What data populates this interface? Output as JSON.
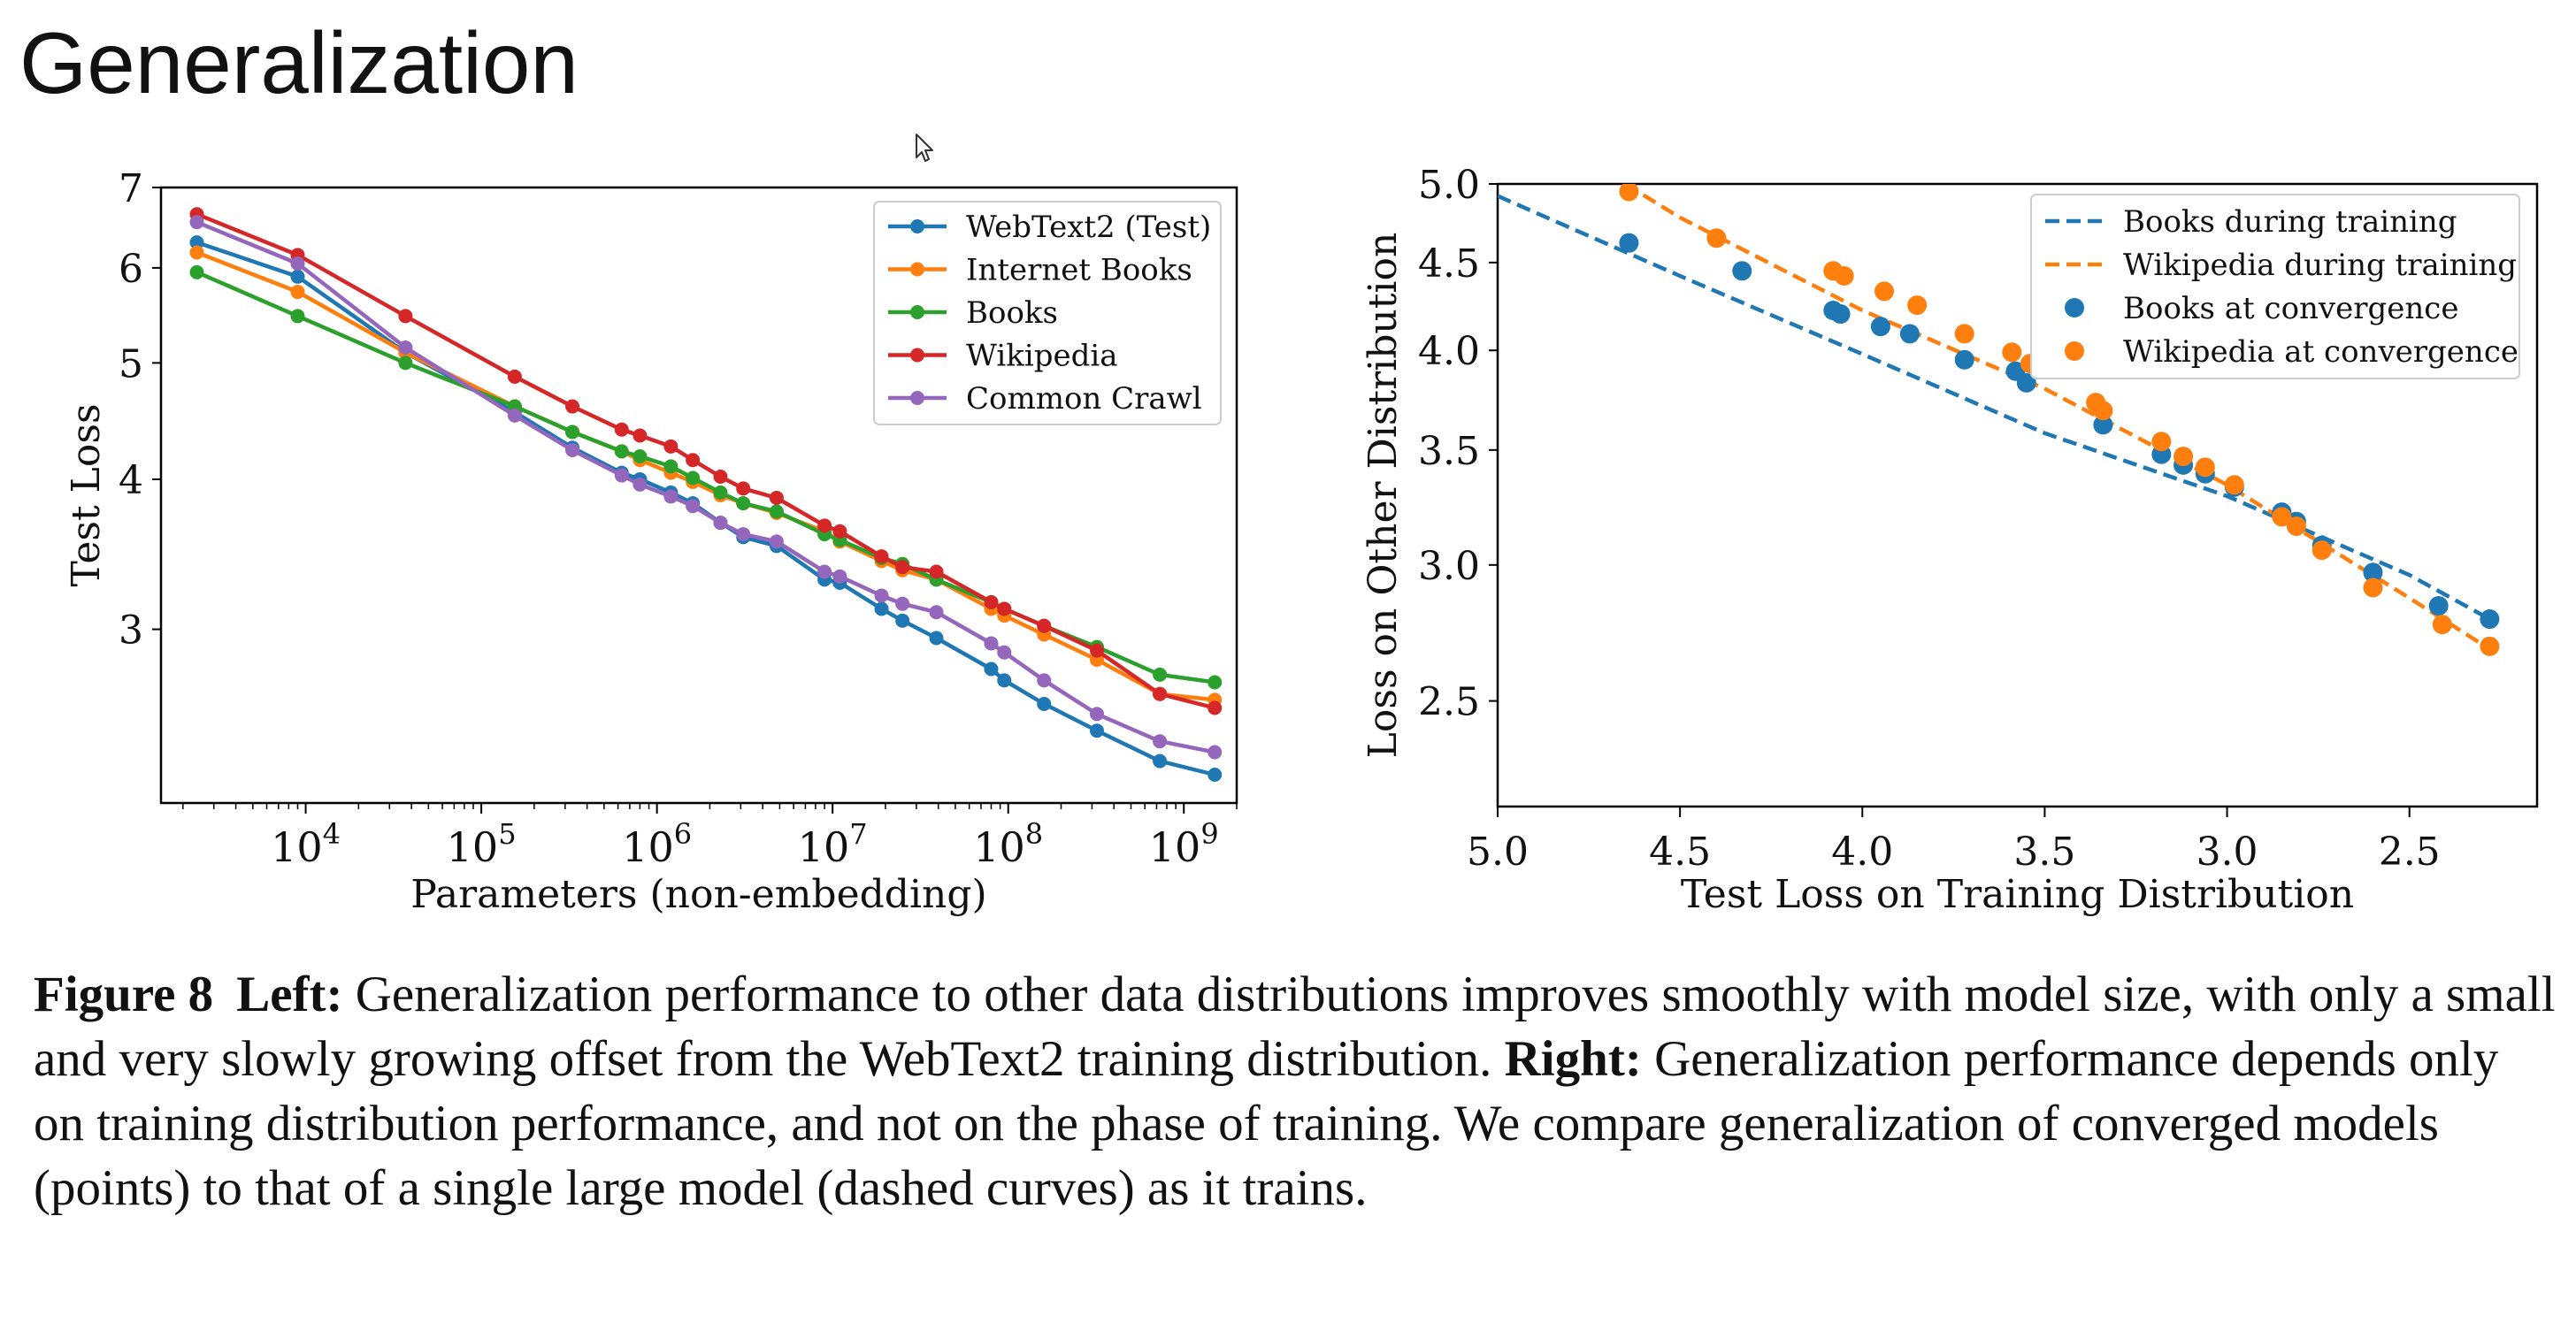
{
  "slide_title": "Generalization",
  "caption": {
    "figure_label": "Figure 8",
    "left_label": "Left:",
    "left_text": " Generalization performance to other data distributions improves smoothly with model size, with only a small and very slowly growing offset from the WebText2 training distribution. ",
    "right_label": "Right:",
    "right_text": " Generalization performance depends only on training distribution performance, and not on the phase of training. We compare generalization of converged models (points) to that of a single large model (dashed curves) as it trains."
  },
  "colors": {
    "blue": "#1f77b4",
    "orange": "#ff7f0e",
    "green": "#2ca02c",
    "red": "#d62728",
    "purple": "#9467bd"
  },
  "chart_data": [
    {
      "type": "line",
      "xlabel": "Parameters (non-embedding)",
      "ylabel": "Test Loss",
      "xscale": "log",
      "yscale": "log",
      "xlim": [
        1500,
        2000000000
      ],
      "ylim": [
        2.15,
        7.0
      ],
      "x_ticks": [
        {
          "value": 10000,
          "base": "10",
          "exp": "4"
        },
        {
          "value": 100000,
          "base": "10",
          "exp": "5"
        },
        {
          "value": 1000000,
          "base": "10",
          "exp": "6"
        },
        {
          "value": 10000000,
          "base": "10",
          "exp": "7"
        },
        {
          "value": 100000000,
          "base": "10",
          "exp": "8"
        },
        {
          "value": 1000000000,
          "base": "10",
          "exp": "9"
        }
      ],
      "y_ticks": [
        {
          "value": 3,
          "label": "3"
        },
        {
          "value": 4,
          "label": "4"
        },
        {
          "value": 5,
          "label": "5"
        },
        {
          "value": 6,
          "label": "6"
        },
        {
          "value": 7,
          "label": "7"
        }
      ],
      "grid": false,
      "legend_position": "top-right",
      "series": [
        {
          "name": "WebText2 (Test)",
          "color": "blue",
          "x": [
            2400,
            9000,
            37000,
            155000,
            330000,
            630000,
            800000,
            1200000,
            1600000,
            2300000,
            3100000,
            4800000,
            9000000,
            11000000,
            19000000,
            25000000,
            39000000,
            80000000,
            95000000,
            160000000,
            320000000,
            730000000,
            1500000000
          ],
          "y": [
            6.3,
            5.9,
            5.1,
            4.55,
            4.25,
            4.05,
            4.0,
            3.9,
            3.82,
            3.68,
            3.58,
            3.52,
            3.3,
            3.28,
            3.12,
            3.05,
            2.95,
            2.78,
            2.72,
            2.6,
            2.47,
            2.33,
            2.27
          ]
        },
        {
          "name": "Internet Books",
          "color": "orange",
          "x": [
            2400,
            9000,
            37000,
            155000,
            330000,
            630000,
            800000,
            1200000,
            1600000,
            2300000,
            3100000,
            4800000,
            9000000,
            11000000,
            19000000,
            25000000,
            39000000,
            80000000,
            95000000,
            160000000,
            320000000,
            730000000,
            1500000000
          ],
          "y": [
            6.18,
            5.73,
            5.1,
            4.6,
            4.38,
            4.22,
            4.15,
            4.05,
            3.98,
            3.88,
            3.82,
            3.75,
            3.62,
            3.55,
            3.42,
            3.36,
            3.3,
            3.12,
            3.08,
            2.97,
            2.83,
            2.65,
            2.62
          ]
        },
        {
          "name": "Books",
          "color": "green",
          "x": [
            2400,
            9000,
            37000,
            155000,
            330000,
            630000,
            800000,
            1200000,
            1600000,
            2300000,
            3100000,
            4800000,
            9000000,
            11000000,
            19000000,
            25000000,
            39000000,
            80000000,
            95000000,
            160000000,
            320000000,
            730000000,
            1500000000
          ],
          "y": [
            5.95,
            5.47,
            5.0,
            4.6,
            4.38,
            4.22,
            4.18,
            4.1,
            4.01,
            3.9,
            3.82,
            3.76,
            3.6,
            3.56,
            3.44,
            3.4,
            3.3,
            3.16,
            3.12,
            3.02,
            2.9,
            2.75,
            2.71
          ]
        },
        {
          "name": "Wikipedia",
          "color": "red",
          "x": [
            2400,
            9000,
            37000,
            155000,
            330000,
            630000,
            800000,
            1200000,
            1600000,
            2300000,
            3100000,
            4800000,
            9000000,
            11000000,
            19000000,
            25000000,
            39000000,
            80000000,
            95000000,
            160000000,
            320000000,
            730000000,
            1500000000
          ],
          "y": [
            6.65,
            6.15,
            5.47,
            4.87,
            4.6,
            4.4,
            4.35,
            4.26,
            4.15,
            4.02,
            3.93,
            3.86,
            3.66,
            3.62,
            3.45,
            3.38,
            3.35,
            3.16,
            3.12,
            3.02,
            2.88,
            2.65,
            2.58
          ]
        },
        {
          "name": "Common Crawl",
          "color": "purple",
          "x": [
            2400,
            9000,
            37000,
            155000,
            330000,
            630000,
            800000,
            1200000,
            1600000,
            2300000,
            3100000,
            4800000,
            9000000,
            11000000,
            19000000,
            25000000,
            39000000,
            80000000,
            95000000,
            160000000,
            320000000,
            730000000,
            1500000000
          ],
          "y": [
            6.55,
            6.05,
            5.15,
            4.52,
            4.23,
            4.03,
            3.96,
            3.87,
            3.8,
            3.68,
            3.6,
            3.55,
            3.35,
            3.32,
            3.2,
            3.15,
            3.1,
            2.92,
            2.87,
            2.72,
            2.55,
            2.42,
            2.37
          ]
        }
      ]
    },
    {
      "type": "scatter",
      "xlabel": "Test Loss on Training Distribution",
      "ylabel": "Loss on Other Distribution",
      "xscale": "linear",
      "yscale": "log",
      "xlim": [
        5.0,
        2.15
      ],
      "x_inverted": true,
      "ylim": [
        2.17,
        5.0
      ],
      "x_ticks": [
        {
          "value": 5.0,
          "label": "5.0"
        },
        {
          "value": 4.5,
          "label": "4.5"
        },
        {
          "value": 4.0,
          "label": "4.0"
        },
        {
          "value": 3.5,
          "label": "3.5"
        },
        {
          "value": 3.0,
          "label": "3.0"
        },
        {
          "value": 2.5,
          "label": "2.5"
        }
      ],
      "y_ticks": [
        {
          "value": 2.5,
          "label": "2.5"
        },
        {
          "value": 3.0,
          "label": "3.0"
        },
        {
          "value": 3.5,
          "label": "3.5"
        },
        {
          "value": 4.0,
          "label": "4.0"
        },
        {
          "value": 4.5,
          "label": "4.5"
        },
        {
          "value": 5.0,
          "label": "5.0"
        }
      ],
      "grid": false,
      "legend_position": "top-right",
      "lines": [
        {
          "name": "Books during training",
          "color": "blue",
          "style": "dashed",
          "x": [
            5.0,
            4.5,
            4.0,
            3.5,
            3.0,
            2.5,
            2.28
          ],
          "y": [
            4.92,
            4.42,
            3.98,
            3.58,
            3.29,
            2.96,
            2.79
          ]
        },
        {
          "name": "Wikipedia during training",
          "color": "orange",
          "style": "dashed",
          "x": [
            4.65,
            4.5,
            4.0,
            3.5,
            3.0,
            2.5,
            2.28
          ],
          "y": [
            5.0,
            4.78,
            4.22,
            3.8,
            3.34,
            2.87,
            2.68
          ]
        }
      ],
      "points": [
        {
          "name": "Books at convergence",
          "color": "blue",
          "x": [
            4.64,
            4.33,
            4.08,
            4.06,
            3.95,
            3.87,
            3.72,
            3.58,
            3.55,
            3.34,
            3.18,
            3.12,
            3.06,
            2.98,
            2.85,
            2.81,
            2.74,
            2.6,
            2.42,
            2.28
          ],
          "y": [
            4.62,
            4.45,
            4.22,
            4.2,
            4.13,
            4.09,
            3.95,
            3.89,
            3.83,
            3.62,
            3.48,
            3.43,
            3.39,
            3.33,
            3.22,
            3.18,
            3.08,
            2.97,
            2.84,
            2.79
          ]
        },
        {
          "name": "Wikipedia at convergence",
          "color": "orange",
          "x": [
            4.64,
            4.4,
            4.08,
            4.05,
            3.94,
            3.85,
            3.72,
            3.59,
            3.54,
            3.36,
            3.34,
            3.18,
            3.12,
            3.06,
            2.98,
            2.85,
            2.81,
            2.74,
            2.6,
            2.41,
            2.28
          ],
          "y": [
            4.95,
            4.65,
            4.45,
            4.42,
            4.33,
            4.25,
            4.09,
            3.99,
            3.93,
            3.73,
            3.69,
            3.54,
            3.47,
            3.42,
            3.34,
            3.2,
            3.16,
            3.06,
            2.91,
            2.77,
            2.69
          ]
        }
      ]
    }
  ]
}
